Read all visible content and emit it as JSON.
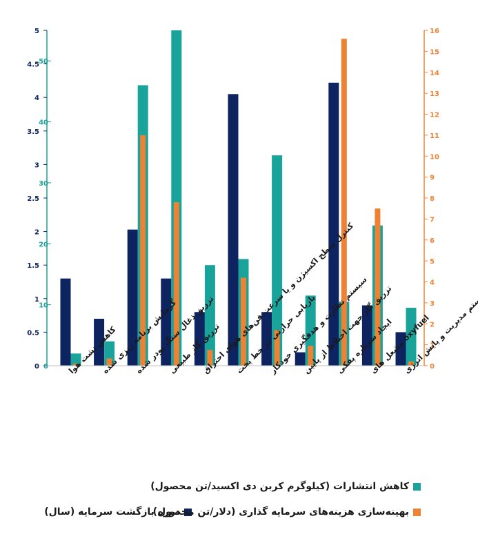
{
  "chart_data": {
    "type": "bar",
    "categories": [
      "کاهش نشت هوا",
      "گرمایش برنامه ریزی شده",
      "تزریق ذغال سنگ پودر شده",
      "تزریق گاز طبیعی",
      "کنترل سطح اکسیژن و یا سرعت فن‌های هوای احتراق",
      "بازیابی حرارتی در خط پخت",
      "سیستم نظارت و هدفگیری خودکار",
      "تزریق گاز جهت اختلاط از پایین",
      "ایجاد سرباره پفکی",
      "oxyfuel مشعل های",
      "سیستم مدیریت و پایش انرژی"
    ],
    "series": [
      {
        "name": "دوره بازگشت سرمایه (سال)",
        "color": "#0d2461",
        "axis": "left_inner",
        "values": [
          1.3,
          0.7,
          2.03,
          1.3,
          0.8,
          4.05,
          0.8,
          0.2,
          4.22,
          0.9,
          0.5
        ]
      },
      {
        "name": "کاهش انتشارات (کیلوگرم کربن دی اکسید/تن محصول)",
        "color": "#1aa39a",
        "axis": "left_outer",
        "values": [
          2,
          4,
          46,
          55,
          16.5,
          17.5,
          34.5,
          11.5,
          10.5,
          23,
          9.5
        ]
      },
      {
        "name": "بهینه‌سازی هزینه‌های سرمایه گذاری (دلار/تن محصول)",
        "color": "#ee8234",
        "axis": "right",
        "values": [
          0.1,
          0.35,
          11,
          7.8,
          0.75,
          4.2,
          1.7,
          0.95,
          15.6,
          7.5,
          0.2
        ]
      }
    ],
    "axes": {
      "left_inner": {
        "min": 0,
        "max": 5,
        "ticks": [
          "0",
          "0.5",
          "1",
          "1.5",
          "2",
          "2.5",
          "3",
          "3.5",
          "4",
          "4.5",
          "5"
        ],
        "color": "#0d2461"
      },
      "left_outer": {
        "min": 0,
        "max": 55,
        "ticks": [
          "0",
          "10",
          "20",
          "30",
          "40",
          "50"
        ],
        "color": "#1aa39a"
      },
      "right": {
        "min": 0,
        "max": 16,
        "ticks": [
          "0",
          "1",
          "2",
          "3",
          "4",
          "5",
          "6",
          "7",
          "8",
          "9",
          "10",
          "11",
          "12",
          "13",
          "14",
          "15",
          "16"
        ],
        "color": "#ee8234"
      }
    },
    "grid": false,
    "legend_position": "bottom"
  }
}
